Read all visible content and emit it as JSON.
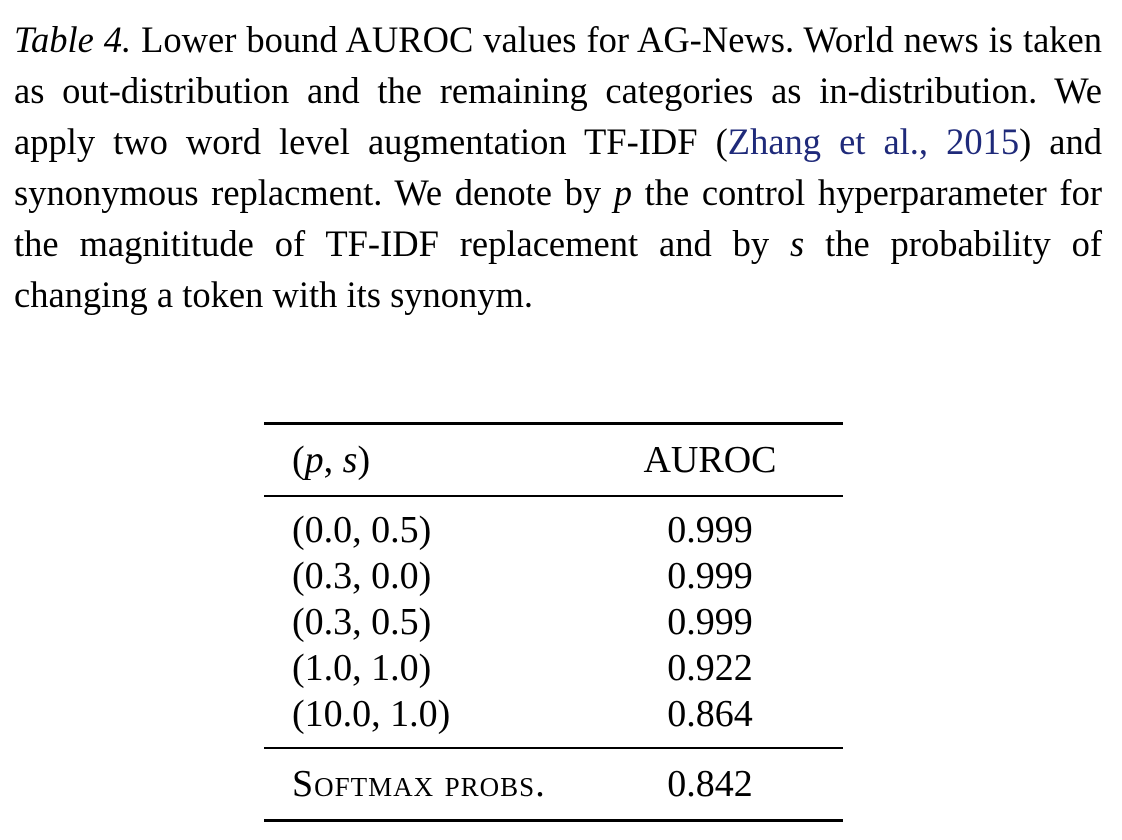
{
  "caption": {
    "label": "Table 4.",
    "text_before_cite": " Lower bound AUROC values for AG-News. World news is taken as out-distribution and the remaining categories as in-distribution.  We apply two word level augmentation TF-IDF (",
    "citation": "Zhang et al., 2015",
    "text_after_cite": ") and synonymous replacment.  We denote by ",
    "var_p": "p",
    "text_mid": " the control hyperparameter for the magnititude of TF-IDF replacement and by ",
    "var_s": "s",
    "text_end": " the probability of changing a token with its synonym."
  },
  "table": {
    "headers": {
      "col1": "(p, s)",
      "col2": "AUROC"
    },
    "rows": [
      {
        "params": "(0.0, 0.5)",
        "auroc": "0.999"
      },
      {
        "params": "(0.3, 0.0)",
        "auroc": "0.999"
      },
      {
        "params": "(0.3, 0.5)",
        "auroc": "0.999"
      },
      {
        "params": "(1.0, 1.0)",
        "auroc": "0.922"
      },
      {
        "params": "(10.0, 1.0)",
        "auroc": "0.864"
      }
    ],
    "baseline": {
      "label": "Softmax probs.",
      "auroc": "0.842"
    }
  }
}
